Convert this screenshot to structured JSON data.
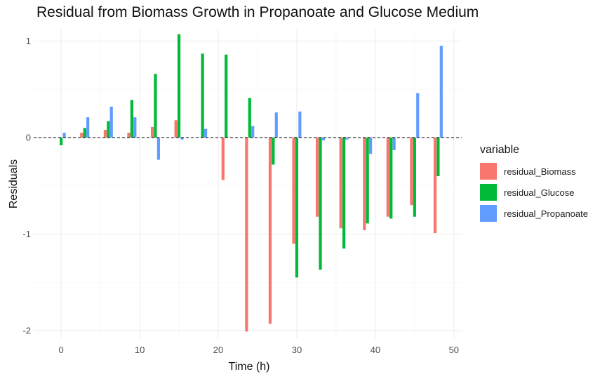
{
  "chart_data": {
    "type": "bar",
    "title": "Residual from Biomass Growth in Propanoate and Glucose Medium",
    "xlabel": "Time (h)",
    "ylabel": "Residuals",
    "xlim": [
      -3.5,
      51
    ],
    "ylim": [
      -2.08,
      1.12
    ],
    "x_ticks": [
      0,
      10,
      20,
      30,
      40,
      50
    ],
    "y_ticks": [
      -2,
      -1,
      0,
      1
    ],
    "grid": true,
    "reference_line": {
      "y": 0,
      "style": "dashed"
    },
    "legend": {
      "title": "variable",
      "position": "right"
    },
    "x": [
      0,
      3,
      6,
      9,
      12,
      15,
      18,
      21,
      24,
      27,
      30,
      33,
      36,
      39,
      42,
      45,
      48
    ],
    "series": [
      {
        "name": "residual_Biomass",
        "color": "#F8766D",
        "values": [
          0,
          0.05,
          0.08,
          0.05,
          0.11,
          0.18,
          0,
          -0.44,
          -2.01,
          -1.93,
          -1.1,
          -0.82,
          -0.94,
          -0.96,
          -0.82,
          -0.7,
          -0.99
        ]
      },
      {
        "name": "residual_Glucose",
        "color": "#00BA38",
        "values": [
          -0.08,
          0.1,
          0.17,
          0.39,
          0.66,
          1.07,
          0.87,
          0.86,
          0.41,
          -0.28,
          -1.45,
          -1.37,
          -1.15,
          -0.89,
          -0.84,
          -0.82,
          -0.4
        ]
      },
      {
        "name": "residual_Propanoate",
        "color": "#619CFF",
        "values": [
          0.05,
          0.21,
          0.32,
          0.21,
          -0.23,
          -0.02,
          0.09,
          0,
          0.12,
          0.26,
          0.27,
          -0.03,
          -0.02,
          -0.17,
          -0.13,
          0.46,
          0.95
        ]
      }
    ]
  }
}
